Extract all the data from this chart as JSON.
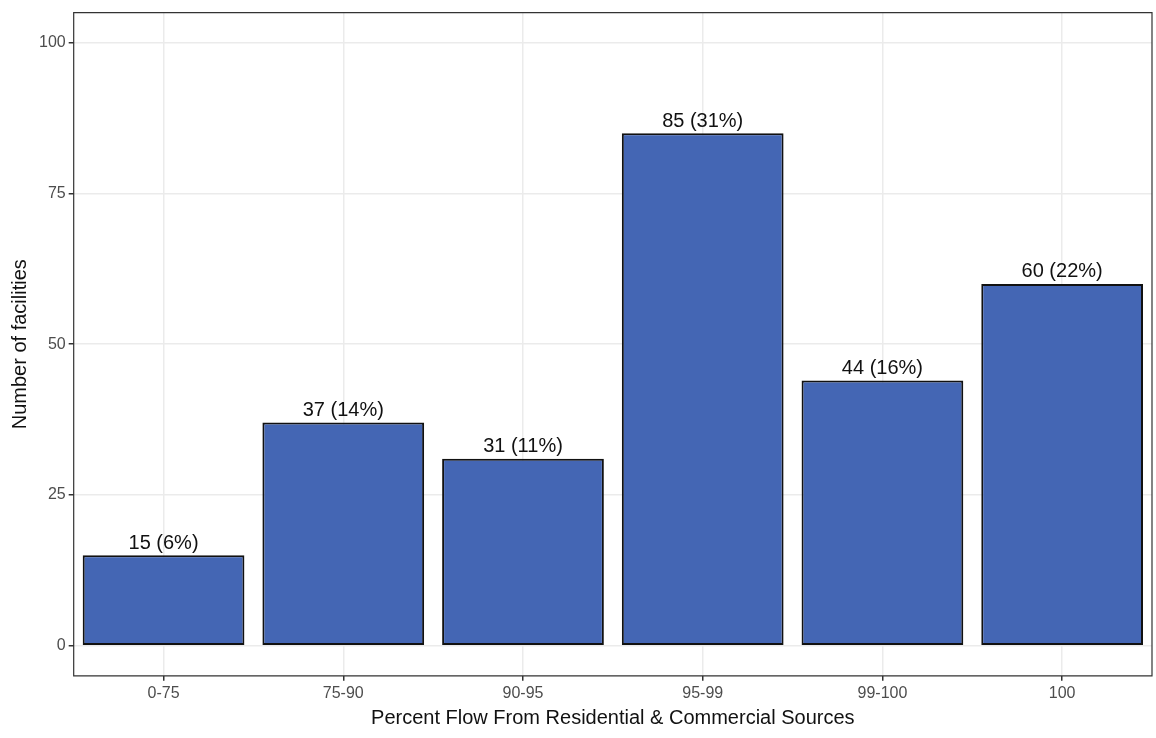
{
  "chart_data": {
    "type": "bar",
    "xlabel": "Percent Flow From Residential & Commercial Sources",
    "ylabel": "Number of facilities",
    "categories": [
      "0-75",
      "75-90",
      "90-95",
      "95-99",
      "99-100",
      "100"
    ],
    "values": [
      15,
      37,
      31,
      85,
      44,
      60
    ],
    "value_labels": [
      "15 (6%)",
      "37 (14%)",
      "31 (11%)",
      "85 (31%)",
      "44 (16%)",
      "60 (22%)"
    ],
    "color": "#4466b4",
    "ylim": [
      -5,
      105
    ],
    "yticks": [
      0,
      25,
      50,
      75,
      100
    ],
    "grid": true,
    "legend": false
  }
}
